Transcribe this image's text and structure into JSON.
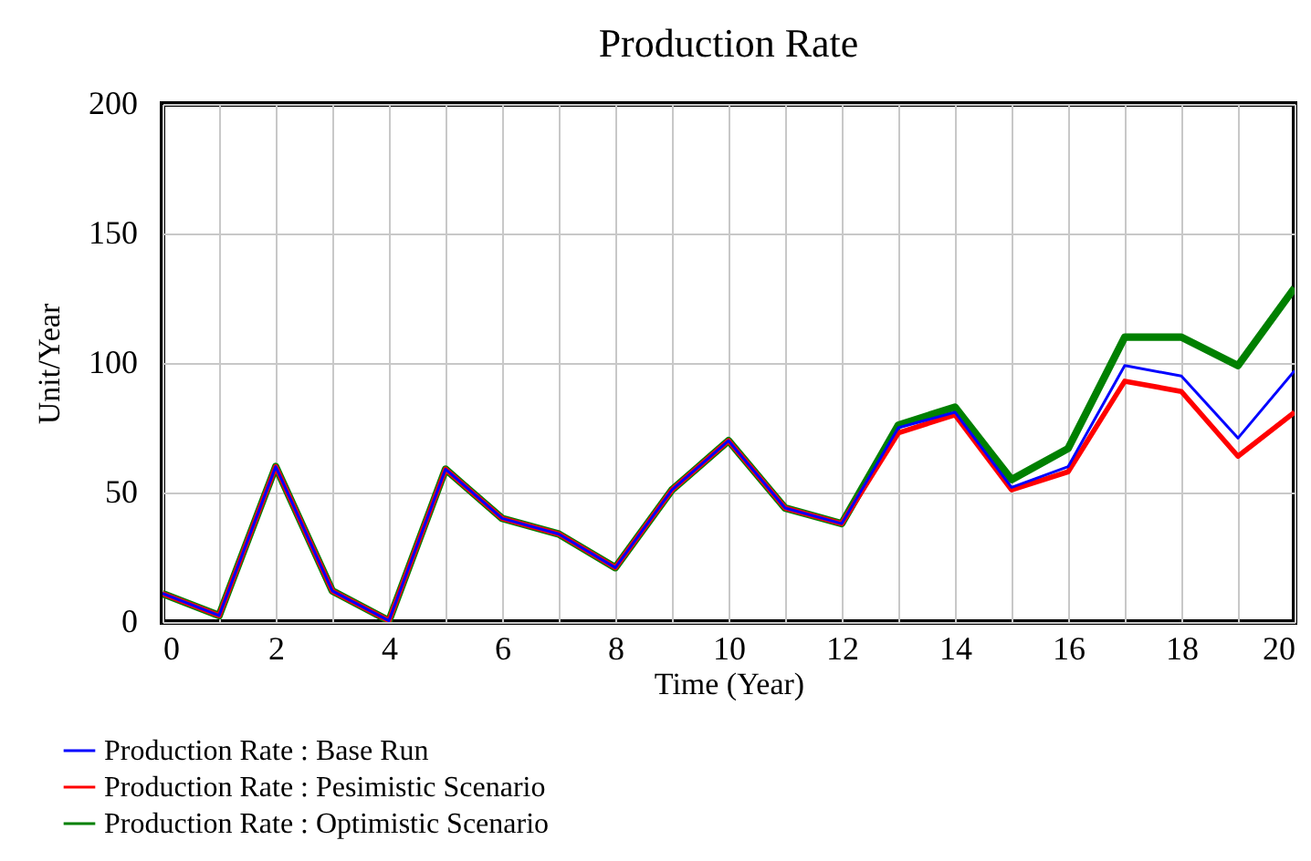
{
  "chart_data": {
    "type": "line",
    "title": "Production Rate",
    "xlabel": "Time (Year)",
    "ylabel": "Unit/Year",
    "x": [
      0,
      1,
      2,
      3,
      4,
      5,
      6,
      7,
      8,
      9,
      10,
      11,
      12,
      13,
      14,
      15,
      16,
      17,
      18,
      19,
      20
    ],
    "series": [
      {
        "name": "Production Rate : Base Run",
        "color": "#0000ff",
        "values": [
          11,
          2.5,
          60,
          12,
          0.5,
          59,
          40,
          34,
          21,
          51,
          70,
          44,
          38,
          75,
          81,
          52,
          60,
          99,
          95,
          71,
          97
        ]
      },
      {
        "name": "Production Rate : Pesimistic Scenario",
        "color": "#ff0000",
        "values": [
          11,
          2.5,
          60,
          12,
          0.5,
          59,
          40,
          34,
          21,
          51,
          70,
          44,
          38,
          73,
          80,
          51,
          58,
          93,
          89,
          64,
          81
        ]
      },
      {
        "name": "Production Rate : Optimistic Scenario",
        "color": "#008000",
        "values": [
          11,
          2.5,
          60,
          12,
          0.5,
          59,
          40,
          34,
          21,
          51,
          70,
          44,
          38,
          76,
          83,
          55,
          67,
          110,
          110,
          99,
          129
        ]
      }
    ],
    "xlim": [
      0,
      20
    ],
    "xticks": [
      0,
      {
        "value": 1,
        "label": null
      },
      2,
      {
        "value": 3,
        "label": null
      },
      4,
      {
        "value": 5,
        "label": null
      },
      6,
      {
        "value": 7,
        "label": null
      },
      8,
      {
        "value": 9,
        "label": null
      },
      10,
      {
        "value": 11,
        "label": null
      },
      12,
      {
        "value": 13,
        "label": null
      },
      14,
      {
        "value": 15,
        "label": null
      },
      16,
      {
        "value": 17,
        "label": null
      },
      18,
      {
        "value": 19,
        "label": null
      },
      20
    ],
    "ylim": [
      0,
      200
    ],
    "yticks": [
      0,
      50,
      100,
      150,
      200
    ],
    "grid": true,
    "legend": "bottom",
    "line_style": "solid"
  }
}
